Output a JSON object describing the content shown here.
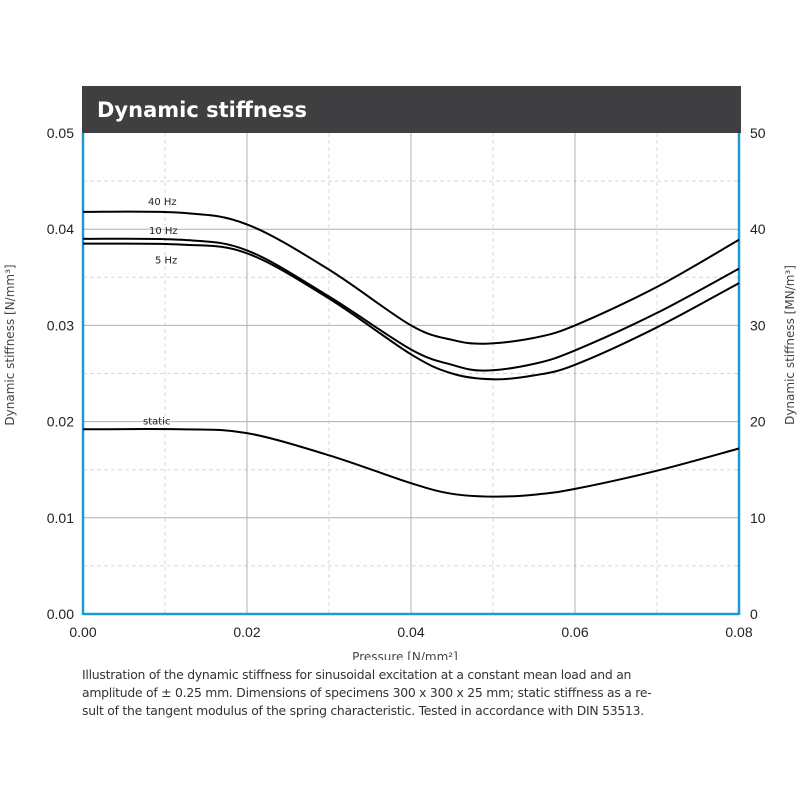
{
  "chart_data": {
    "type": "line",
    "title": "Dynamic stiffness",
    "xlabel": "Pressure [N/mm²]",
    "ylabel": "Dynamic stiffness  [N/mm³]",
    "y2label": "Dynamic stiffness  [MN/m³]",
    "xlim": [
      0,
      0.08
    ],
    "ylim": [
      0,
      0.05
    ],
    "y2lim": [
      0,
      50
    ],
    "grid": true,
    "x_ticks": [
      "0.00",
      "0.02",
      "0.04",
      "0.06",
      "0.08"
    ],
    "y_ticks": [
      "0.00",
      "0.01",
      "0.02",
      "0.03",
      "0.04",
      "0.05"
    ],
    "y2_ticks": [
      "0",
      "10",
      "20",
      "30",
      "40",
      "50"
    ],
    "series": [
      {
        "name": "40 Hz",
        "x": [
          0,
          0.012,
          0.02,
          0.03,
          0.04,
          0.045,
          0.049,
          0.055,
          0.06,
          0.07,
          0.08
        ],
        "values": [
          0.0418,
          0.0417,
          0.0405,
          0.0358,
          0.03,
          0.0285,
          0.0281,
          0.0287,
          0.03,
          0.034,
          0.0389
        ]
      },
      {
        "name": "10 Hz",
        "x": [
          0,
          0.012,
          0.02,
          0.03,
          0.04,
          0.045,
          0.049,
          0.055,
          0.06,
          0.07,
          0.08
        ],
        "values": [
          0.039,
          0.0389,
          0.0378,
          0.033,
          0.0275,
          0.0259,
          0.0253,
          0.026,
          0.0274,
          0.0313,
          0.0359
        ]
      },
      {
        "name": "5 Hz",
        "x": [
          0,
          0.012,
          0.02,
          0.03,
          0.04,
          0.045,
          0.05,
          0.055,
          0.06,
          0.07,
          0.08
        ],
        "values": [
          0.0385,
          0.0384,
          0.0375,
          0.0328,
          0.027,
          0.025,
          0.0244,
          0.0248,
          0.0259,
          0.0298,
          0.0344
        ]
      },
      {
        "name": "static",
        "x": [
          0,
          0.012,
          0.02,
          0.03,
          0.04,
          0.045,
          0.05,
          0.055,
          0.06,
          0.07,
          0.08
        ],
        "values": [
          0.0192,
          0.0192,
          0.0188,
          0.0165,
          0.0136,
          0.0125,
          0.0122,
          0.0124,
          0.013,
          0.0149,
          0.0172
        ]
      }
    ]
  },
  "caption": {
    "lines": [
      "Illustration of the dynamic stiffness for sinusoidal excitation at a constant mean load and an",
      "amplitude of ± 0.25 mm.  Dimensions of specimens 300 x 300 x 25 mm; static stiffness as a re-",
      "sult of the tangent modulus of the  spring characteristic. Tested in accordance with DIN 53513."
    ]
  },
  "colors": {
    "title_bar": "#3f3f41",
    "frame": "#1a9ad6",
    "grid_major": "#b0b0b0",
    "grid_minor": "#d8d8d8",
    "curve": "#000000"
  }
}
